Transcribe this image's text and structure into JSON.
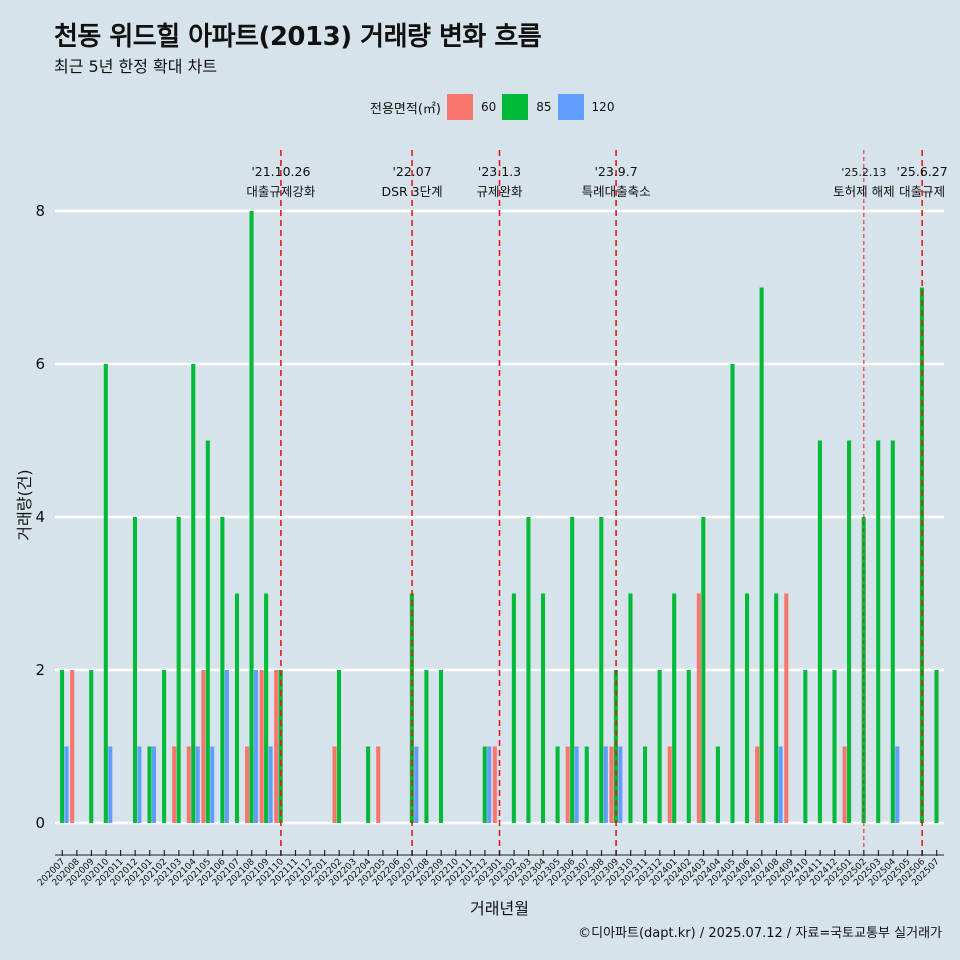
{
  "header": {
    "title": "천동 위드힐 아파트(2013) 거래량 변화 흐름",
    "subtitle": "최근 5년 한정 확대 차트"
  },
  "legend": {
    "title": "전용면적(㎡)",
    "items": [
      {
        "label": "60",
        "color": "#f8766d"
      },
      {
        "label": "85",
        "color": "#00ba38"
      },
      {
        "label": "120",
        "color": "#619cff"
      }
    ]
  },
  "caption": "©디아파트(dapt.kr) / 2025.07.12 / 자료=국토교통부 실거래가",
  "chart_data": {
    "type": "bar",
    "xlabel": "거래년월",
    "ylabel": "거래량(건)",
    "ylim": [
      -0.3,
      8.6
    ],
    "y_ticks": [
      0,
      2,
      4,
      6,
      8
    ],
    "grid": true,
    "legend_position": "top",
    "categories": [
      "202007",
      "202008",
      "202009",
      "202010",
      "202011",
      "202012",
      "202101",
      "202102",
      "202103",
      "202104",
      "202105",
      "202106",
      "202107",
      "202108",
      "202109",
      "202110",
      "202111",
      "202112",
      "202201",
      "202202",
      "202203",
      "202204",
      "202205",
      "202206",
      "202207",
      "202208",
      "202209",
      "202210",
      "202211",
      "202212",
      "202301",
      "202302",
      "202303",
      "202304",
      "202305",
      "202306",
      "202307",
      "202308",
      "202309",
      "202310",
      "202311",
      "202312",
      "202401",
      "202402",
      "202403",
      "202404",
      "202405",
      "202406",
      "202407",
      "202408",
      "202409",
      "202410",
      "202411",
      "202412",
      "202501",
      "202502",
      "202503",
      "202504",
      "202505",
      "202506",
      "202507"
    ],
    "series": [
      {
        "name": "60",
        "color": "#f8766d",
        "values": [
          0,
          2,
          0,
          0,
          0,
          0,
          0,
          0,
          1,
          1,
          2,
          0,
          0,
          1,
          2,
          2,
          0,
          0,
          0,
          1,
          0,
          0,
          1,
          0,
          0,
          0,
          0,
          0,
          0,
          0,
          1,
          0,
          0,
          0,
          0,
          1,
          0,
          0,
          1,
          0,
          0,
          0,
          1,
          0,
          3,
          0,
          0,
          0,
          1,
          0,
          3,
          0,
          0,
          0,
          1,
          0,
          0,
          0,
          0,
          0,
          0
        ]
      },
      {
        "name": "85",
        "color": "#00ba38",
        "values": [
          2,
          0,
          2,
          6,
          0,
          4,
          1,
          2,
          4,
          6,
          5,
          4,
          3,
          8,
          3,
          2,
          0,
          0,
          0,
          2,
          0,
          1,
          0,
          0,
          3,
          2,
          2,
          0,
          0,
          1,
          0,
          3,
          4,
          3,
          1,
          4,
          1,
          4,
          2,
          3,
          1,
          2,
          3,
          2,
          4,
          1,
          6,
          3,
          7,
          3,
          0,
          2,
          5,
          2,
          5,
          4,
          5,
          5,
          0,
          7,
          2
        ]
      },
      {
        "name": "120",
        "color": "#619cff",
        "values": [
          1,
          0,
          0,
          1,
          0,
          1,
          1,
          0,
          0,
          1,
          1,
          2,
          0,
          2,
          1,
          0,
          0,
          0,
          0,
          0,
          0,
          0,
          0,
          0,
          1,
          0,
          0,
          0,
          0,
          1,
          0,
          0,
          0,
          0,
          0,
          1,
          0,
          1,
          1,
          0,
          0,
          0,
          0,
          0,
          0,
          0,
          0,
          0,
          0,
          1,
          0,
          0,
          0,
          0,
          0,
          0,
          0,
          1,
          0,
          0,
          0
        ]
      }
    ],
    "events": [
      {
        "x": "202110",
        "date": "'21.10.26",
        "label": "대출규제강화",
        "dashed": "short"
      },
      {
        "x": "202207",
        "date": "'22.07",
        "label": "DSR 3단계",
        "dashed": "short"
      },
      {
        "x": "202301",
        "date": "'23.1.3",
        "label": "규제완화",
        "dashed": "short"
      },
      {
        "x": "202309",
        "date": "'23.9.7",
        "label": "특례대출축소",
        "dashed": "short"
      },
      {
        "x": "202502",
        "date": "'25.2.13",
        "label": "토허제 해제",
        "dashed": "thin"
      },
      {
        "x": "202506",
        "date": "'25.6.27",
        "label": "대출규제",
        "dashed": "short"
      }
    ]
  }
}
